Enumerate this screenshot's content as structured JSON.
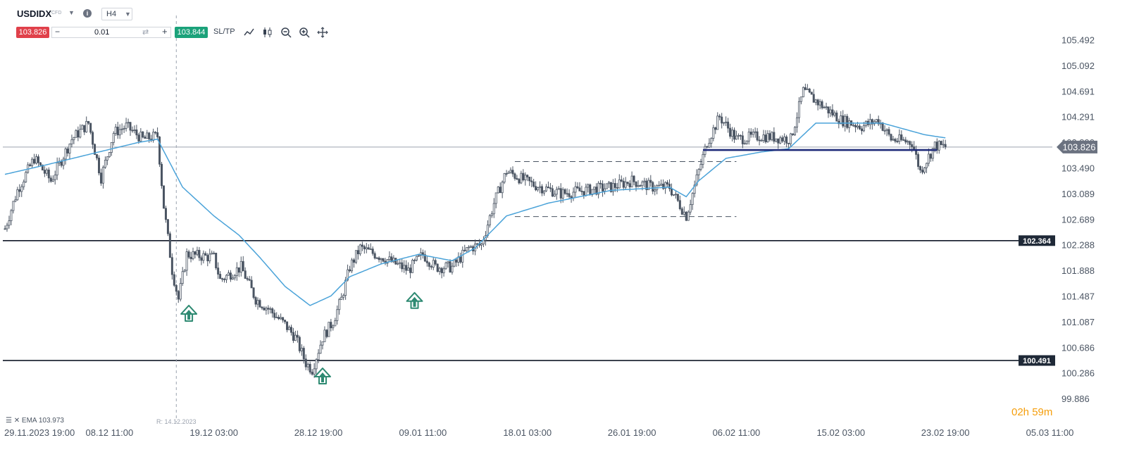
{
  "toolbar": {
    "symbol": "USDIDX",
    "instrument_type": "CFD",
    "info_icon": "info-icon",
    "timeframe": "H4",
    "sell_price": "103.826",
    "quantity": "0.01",
    "buy_price": "103.844",
    "sltp_label": "SL/TP",
    "tools": [
      "line-chart-icon",
      "candlestick-icon",
      "zoom-out-icon",
      "zoom-in-icon",
      "crosshair-icon"
    ]
  },
  "indicator": {
    "label": "EMA 103.973"
  },
  "replay_date": "R: 14.12.2023",
  "timer": {
    "hours": "02h",
    "minutes": "59m"
  },
  "colors": {
    "candle": "#4b5563",
    "ema": "#4ba3d9",
    "support": "#111827",
    "resistance_blue": "#1e2a78",
    "arrow": "#2e8a72",
    "price_tag": "#6b7280",
    "level_tag": "#1f2937",
    "sell": "#e0404a",
    "buy": "#1ba27a",
    "timer": "#f59e0b"
  },
  "chart_data": {
    "type": "candlestick",
    "symbol": "USDIDX",
    "timeframe": "H4",
    "ylim": [
      99.886,
      105.492
    ],
    "y_ticks": [
      "105.492",
      "105.092",
      "104.691",
      "104.291",
      "103.890",
      "103.490",
      "103.089",
      "102.689",
      "102.288",
      "101.888",
      "101.487",
      "101.087",
      "100.686",
      "100.286",
      "99.886"
    ],
    "x_ticks": [
      "29.11.2023 19:00",
      "08.12 11:00",
      "19.12 03:00",
      "28.12 19:00",
      "09.01 11:00",
      "18.01 03:00",
      "26.01 19:00",
      "06.02 11:00",
      "15.02 03:00",
      "23.02 19:00",
      "05.03 11:00"
    ],
    "x_tick_index": [
      0,
      50,
      100,
      150,
      200,
      250,
      300,
      350,
      400,
      450,
      500
    ],
    "current_price": "103.826",
    "horizontal_levels": [
      {
        "label": "102.364",
        "value": 102.364,
        "color": "#111827"
      },
      {
        "label": "100.491",
        "value": 100.491,
        "color": "#111827"
      }
    ],
    "resistance_line": {
      "value": 103.78,
      "from_index": 334,
      "to_index": 446,
      "color": "#1e2a78"
    },
    "range_box": {
      "top": 103.6,
      "bottom": 102.74,
      "from_index": 244,
      "to_index": 350
    },
    "vertical_marker_index": 82,
    "up_arrows": [
      {
        "index": 88,
        "value": 101.35
      },
      {
        "index": 196,
        "value": 101.55
      },
      {
        "index": 152,
        "value": 100.37
      }
    ],
    "anchors": [
      [
        0,
        102.55
      ],
      [
        6,
        103.15
      ],
      [
        14,
        103.65
      ],
      [
        22,
        103.3
      ],
      [
        32,
        103.95
      ],
      [
        40,
        104.2
      ],
      [
        46,
        103.35
      ],
      [
        52,
        104.05
      ],
      [
        58,
        104.15
      ],
      [
        66,
        103.95
      ],
      [
        73,
        104.0
      ],
      [
        76,
        102.9
      ],
      [
        80,
        101.9
      ],
      [
        83,
        101.45
      ],
      [
        87,
        102.15
      ],
      [
        100,
        102.1
      ],
      [
        103,
        101.75
      ],
      [
        113,
        101.95
      ],
      [
        120,
        101.45
      ],
      [
        126,
        101.3
      ],
      [
        134,
        101.05
      ],
      [
        139,
        100.85
      ],
      [
        144,
        100.45
      ],
      [
        147,
        100.35
      ],
      [
        152,
        100.85
      ],
      [
        157,
        101.1
      ],
      [
        161,
        101.45
      ],
      [
        165,
        101.95
      ],
      [
        170,
        102.25
      ],
      [
        181,
        102.1
      ],
      [
        193,
        101.9
      ],
      [
        200,
        102.15
      ],
      [
        206,
        101.95
      ],
      [
        214,
        101.95
      ],
      [
        222,
        102.25
      ],
      [
        228,
        102.3
      ],
      [
        234,
        102.95
      ],
      [
        240,
        103.45
      ],
      [
        252,
        103.25
      ],
      [
        266,
        103.1
      ],
      [
        278,
        103.15
      ],
      [
        290,
        103.2
      ],
      [
        300,
        103.3
      ],
      [
        310,
        103.2
      ],
      [
        318,
        103.2
      ],
      [
        326,
        102.75
      ],
      [
        332,
        103.45
      ],
      [
        336,
        103.9
      ],
      [
        342,
        104.3
      ],
      [
        350,
        103.95
      ],
      [
        362,
        104.0
      ],
      [
        376,
        103.95
      ],
      [
        382,
        104.7
      ],
      [
        390,
        104.5
      ],
      [
        400,
        104.25
      ],
      [
        410,
        104.15
      ],
      [
        418,
        104.25
      ],
      [
        424,
        103.95
      ],
      [
        434,
        103.9
      ],
      [
        438,
        103.45
      ],
      [
        445,
        103.85
      ],
      [
        450,
        103.83
      ]
    ],
    "ema_anchors": [
      [
        0,
        103.4
      ],
      [
        20,
        103.55
      ],
      [
        45,
        103.75
      ],
      [
        64,
        103.9
      ],
      [
        73,
        103.95
      ],
      [
        85,
        103.2
      ],
      [
        100,
        102.75
      ],
      [
        112,
        102.45
      ],
      [
        122,
        102.1
      ],
      [
        134,
        101.65
      ],
      [
        146,
        101.35
      ],
      [
        156,
        101.5
      ],
      [
        165,
        101.8
      ],
      [
        180,
        102.0
      ],
      [
        198,
        102.15
      ],
      [
        214,
        102.05
      ],
      [
        225,
        102.25
      ],
      [
        240,
        102.75
      ],
      [
        260,
        102.95
      ],
      [
        290,
        103.15
      ],
      [
        318,
        103.2
      ],
      [
        326,
        103.05
      ],
      [
        332,
        103.3
      ],
      [
        345,
        103.65
      ],
      [
        362,
        103.75
      ],
      [
        375,
        103.8
      ],
      [
        388,
        104.2
      ],
      [
        400,
        104.2
      ],
      [
        420,
        104.2
      ],
      [
        440,
        104.02
      ],
      [
        450,
        103.97
      ]
    ]
  }
}
